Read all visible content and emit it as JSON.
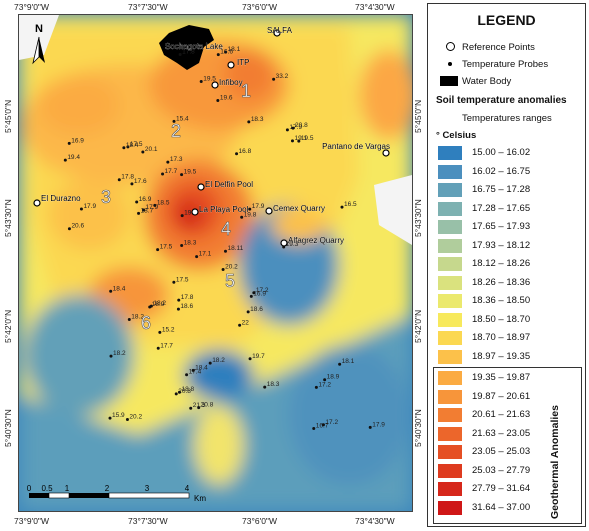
{
  "axes": {
    "top_ticks": [
      "73°9'0\"W",
      "73°7'30\"W",
      "73°6'0\"W",
      "73°4'30\"W"
    ],
    "bottom_ticks": [
      "73°9'0\"W",
      "73°7'30\"W",
      "73°6'0\"W",
      "73°4'30\"W"
    ],
    "left_ticks": [
      "5°45'0\"N",
      "5°43'30\"N",
      "5°42'0\"N",
      "5°40'30\"N"
    ],
    "right_ticks": [
      "5°45'0\"N",
      "5°43'30\"N",
      "5°42'0\"N",
      "5°40'30\"N"
    ]
  },
  "map": {
    "north_label": "N",
    "scale_labels": [
      "0",
      "0.5",
      "1",
      "2",
      "3",
      "4"
    ],
    "scale_unit": "Km",
    "places": [
      {
        "name": "Sochagota Lake"
      },
      {
        "name": "SALFA"
      },
      {
        "name": "ITP"
      },
      {
        "name": "Infiboy"
      },
      {
        "name": "Pantano de Vargas"
      },
      {
        "name": "El Delfin Pool"
      },
      {
        "name": "La Playa Pool"
      },
      {
        "name": "Cemex Quarry"
      },
      {
        "name": "Alfagrez Quarry"
      },
      {
        "name": "El Durazno"
      }
    ],
    "zone_numbers": [
      "1",
      "2",
      "3",
      "4",
      "5",
      "6"
    ],
    "probe_values": [
      "19.6",
      "20.1",
      "19.8",
      "18.6",
      "18.9",
      "18.4",
      "17.5",
      "19.5",
      "18.1",
      "20.8",
      "17.8",
      "19.8",
      "17.9",
      "19.3",
      "18.2",
      "22",
      "20.6",
      "19.1",
      "18.9",
      "20.2",
      "19.5",
      "18.7",
      "17.5",
      "18.11",
      "18.2",
      "19.7",
      "19.4",
      "20.8",
      "18.3",
      "21.3",
      "33.2",
      "19.5",
      "18.3",
      "20.2",
      "18.4",
      "18.6",
      "17.9",
      "16.5",
      "17.9",
      "20.8",
      "18.1",
      "17.3",
      "18.5",
      "16.9",
      "18.2",
      "15.2",
      "17.8",
      "17.9",
      "16.7",
      "18.8",
      "15.4",
      "16.8",
      "17.6",
      "17.2",
      "17.7",
      "17.4",
      "16.9",
      "18.3",
      "17.2",
      "18.2",
      "16.6",
      "17.7",
      "16.9",
      "17.1",
      "17.5",
      "17.8",
      "18.4",
      "17.9",
      "17.2",
      "15.9"
    ]
  },
  "legend": {
    "title": "LEGEND",
    "reference_points": "Reference Points",
    "temperature_probes": "Temperature Probes",
    "water_body": "Water Body",
    "anomalies_title": "Soil temperature anomalies",
    "temperature_ranges": "Temperatures ranges",
    "unit": "° Celsius",
    "geothermal_label": "Geothermal Anomalies",
    "classes": [
      {
        "range": "15.00 – 16.02",
        "color": "#2f7fbe"
      },
      {
        "range": "16.02 – 16.75",
        "color": "#4b8fbe"
      },
      {
        "range": "16.75 – 17.28",
        "color": "#62a0b8"
      },
      {
        "range": "17.28 – 17.65",
        "color": "#7db1b1"
      },
      {
        "range": "17.65 – 17.93",
        "color": "#98c0a8"
      },
      {
        "range": "17.93 – 18.12",
        "color": "#b0cd9c"
      },
      {
        "range": "18.12 – 18.26",
        "color": "#c6d88d"
      },
      {
        "range": "18.26 – 18.36",
        "color": "#dae27e"
      },
      {
        "range": "18.36 – 18.50",
        "color": "#ebe96d"
      },
      {
        "range": "18.50 – 18.70",
        "color": "#f7e95c"
      },
      {
        "range": "18.70 – 18.97",
        "color": "#fbd851"
      },
      {
        "range": "18.97 – 19.35",
        "color": "#fcc14a"
      },
      {
        "range": "19.35 – 19.87",
        "color": "#fbab42"
      },
      {
        "range": "19.87 – 20.61",
        "color": "#f7953a"
      },
      {
        "range": "20.61 – 21.63",
        "color": "#f27d32"
      },
      {
        "range": "21.63 – 23.05",
        "color": "#ec662b"
      },
      {
        "range": "23.05 – 25.03",
        "color": "#e54f24"
      },
      {
        "range": "25.03 – 27.79",
        "color": "#de3b1f"
      },
      {
        "range": "27.79 – 31.64",
        "color": "#d6271b"
      },
      {
        "range": "31.64 – 37.00",
        "color": "#cf1717"
      }
    ]
  }
}
